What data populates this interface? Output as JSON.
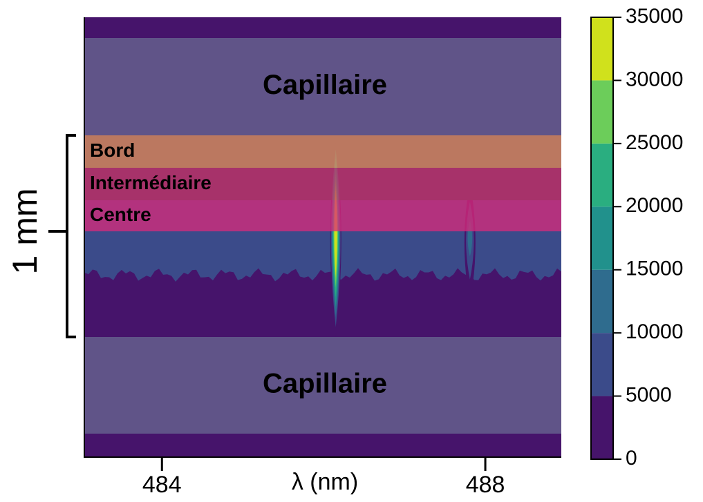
{
  "chart_data": {
    "type": "heatmap",
    "xlabel": "λ (nm)",
    "xlim": [
      483.04,
      488.94
    ],
    "xticks": [
      484,
      488
    ],
    "peaks": {
      "x": [
        486.15,
        487.81
      ],
      "values": [
        35000,
        15000
      ]
    },
    "background": 5000,
    "colorbar": {
      "levels": [
        0,
        5000,
        10000,
        15000,
        20000,
        25000,
        30000,
        35000
      ],
      "colors": [
        "#46146b",
        "#3b4b8a",
        "#2f6c8e",
        "#21918c",
        "#2aae80",
        "#6ccd5a",
        "#d0e11c"
      ]
    },
    "regions": [
      {
        "label": "Capillaire",
        "color": "#6a6a92"
      },
      {
        "label": "Bord",
        "color": "#e39a5c"
      },
      {
        "label": "Intermédiaire",
        "color": "#c83c6a"
      },
      {
        "label": "Centre",
        "color": "#dc2a7a"
      },
      {
        "label": "Capillaire",
        "color": "#6a6a92"
      }
    ],
    "scale_label": "1 mm"
  }
}
